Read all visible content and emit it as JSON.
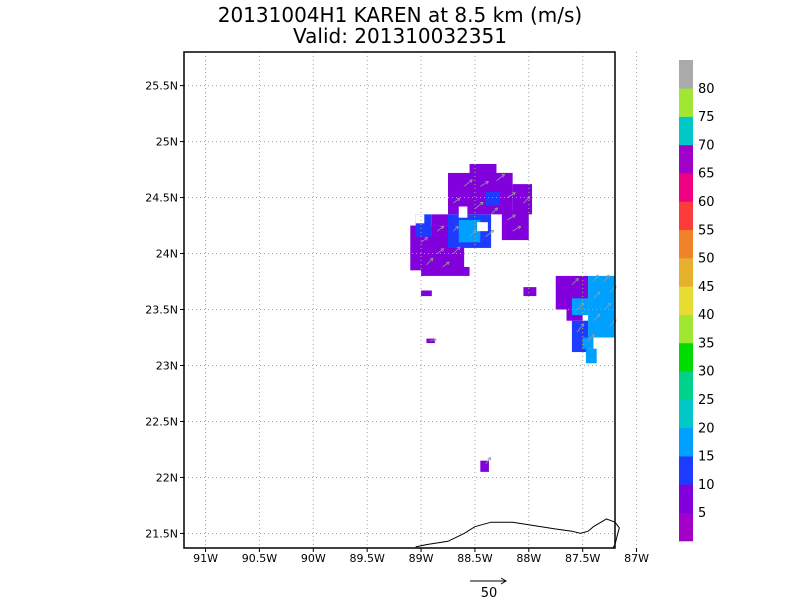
{
  "chart_data": {
    "type": "heatmap",
    "title": "20131004H1 KAREN at 8.5 km (m/s)",
    "subtitle": "Valid: 201310032351",
    "xlim": [
      -91.2,
      -87.2
    ],
    "ylim": [
      21.37,
      25.8
    ],
    "x_ticks": [
      -91,
      -90.5,
      -90,
      -89.5,
      -89,
      -88.5,
      -88,
      -87.5,
      -87
    ],
    "x_tick_labels": [
      "91W",
      "90.5W",
      "90W",
      "89.5W",
      "89W",
      "88.5W",
      "88W",
      "87.5W",
      "87W"
    ],
    "y_ticks": [
      21.5,
      22,
      22.5,
      23,
      23.5,
      24,
      24.5,
      25,
      25.5
    ],
    "y_tick_labels": [
      "21.5N",
      "22N",
      "22.5N",
      "23N",
      "23.5N",
      "24N",
      "24.5N",
      "25N",
      "25.5N"
    ],
    "grid": true,
    "colorbar": {
      "levels": [
        5,
        10,
        15,
        20,
        25,
        30,
        35,
        40,
        45,
        50,
        55,
        60,
        65,
        70,
        75,
        80
      ],
      "labels": [
        "5",
        "10",
        "15",
        "20",
        "25",
        "30",
        "35",
        "40",
        "45",
        "50",
        "55",
        "60",
        "65",
        "70",
        "75",
        "80"
      ],
      "colors": [
        "#a000c8",
        "#8200dc",
        "#1e3cff",
        "#00a0ff",
        "#00c8c8",
        "#00d28c",
        "#00dc00",
        "#a0e632",
        "#e6dc32",
        "#e6af2d",
        "#f08228",
        "#fa3c3c",
        "#f00082",
        "#a000c8",
        "#00c8c8",
        "#a0e632",
        "#aaaaaa"
      ]
    },
    "reference_vector": {
      "label": "50",
      "value_ms": 50
    },
    "colors": {
      "c_purple": "#8200dc",
      "c_blue": "#1e3cff",
      "c_lightblue": "#00a0ff",
      "vector": "#999999",
      "grid": "#a0a0a0",
      "coast": "#000000"
    },
    "regions": [
      {
        "bin": "c_purple",
        "lon": [
          -88.75,
          -88.15
        ],
        "lat": [
          24.35,
          24.72
        ]
      },
      {
        "bin": "c_purple",
        "lon": [
          -88.55,
          -88.3
        ],
        "lat": [
          24.7,
          24.8
        ]
      },
      {
        "bin": "c_purple",
        "lon": [
          -88.15,
          -87.97
        ],
        "lat": [
          24.35,
          24.62
        ]
      },
      {
        "bin": "c_purple",
        "lon": [
          -88.25,
          -88.0
        ],
        "lat": [
          24.12,
          24.38
        ]
      },
      {
        "bin": "c_purple",
        "lon": [
          -89.1,
          -88.6
        ],
        "lat": [
          23.85,
          24.25
        ]
      },
      {
        "bin": "c_purple",
        "lon": [
          -89.0,
          -88.55
        ],
        "lat": [
          23.8,
          23.88
        ]
      },
      {
        "bin": "c_purple",
        "lon": [
          -88.9,
          -88.75
        ],
        "lat": [
          24.25,
          24.35
        ]
      },
      {
        "bin": "c_purple",
        "lon": [
          -89.0,
          -88.9
        ],
        "lat": [
          23.62,
          23.67
        ]
      },
      {
        "bin": "c_purple",
        "lon": [
          -88.95,
          -88.87
        ],
        "lat": [
          23.2,
          23.24
        ]
      },
      {
        "bin": "c_purple",
        "lon": [
          -88.05,
          -87.93
        ],
        "lat": [
          23.62,
          23.7
        ]
      },
      {
        "bin": "c_purple",
        "lon": [
          -87.75,
          -87.45
        ],
        "lat": [
          23.5,
          23.8
        ]
      },
      {
        "bin": "c_purple",
        "lon": [
          -87.65,
          -87.5
        ],
        "lat": [
          23.4,
          23.5
        ]
      },
      {
        "bin": "c_purple",
        "lon": [
          -88.45,
          -88.37
        ],
        "lat": [
          22.05,
          22.15
        ]
      },
      {
        "bin": "c_blue",
        "lon": [
          -88.75,
          -88.35
        ],
        "lat": [
          24.05,
          24.35
        ]
      },
      {
        "bin": "c_blue",
        "lon": [
          -88.4,
          -88.27
        ],
        "lat": [
          24.43,
          24.55
        ]
      },
      {
        "bin": "c_blue",
        "lon": [
          -89.05,
          -88.9
        ],
        "lat": [
          24.15,
          24.35
        ]
      },
      {
        "bin": "c_blue",
        "lon": [
          -87.6,
          -87.45
        ],
        "lat": [
          23.12,
          23.4
        ]
      },
      {
        "bin": "c_lightblue",
        "lon": [
          -88.65,
          -88.45
        ],
        "lat": [
          24.1,
          24.3
        ]
      },
      {
        "bin": "c_lightblue",
        "lon": [
          -87.45,
          -87.2
        ],
        "lat": [
          23.25,
          23.8
        ]
      },
      {
        "bin": "c_lightblue",
        "lon": [
          -87.6,
          -87.45
        ],
        "lat": [
          23.45,
          23.6
        ]
      },
      {
        "bin": "c_lightblue",
        "lon": [
          -87.47,
          -87.37
        ],
        "lat": [
          23.02,
          23.15
        ]
      },
      {
        "bin": "c_lightblue",
        "lon": [
          -87.5,
          -87.4
        ],
        "lat": [
          23.15,
          23.25
        ]
      }
    ],
    "gaps": [
      {
        "lon": [
          -88.65,
          -88.57
        ],
        "lat": [
          24.32,
          24.42
        ]
      },
      {
        "lon": [
          -88.48,
          -88.38
        ],
        "lat": [
          24.2,
          24.28
        ]
      },
      {
        "lon": [
          -89.05,
          -88.97
        ],
        "lat": [
          24.27,
          24.35
        ]
      }
    ],
    "vectors": [
      {
        "lon": -88.6,
        "lat": 24.6,
        "u": 5,
        "v": 4
      },
      {
        "lon": -88.45,
        "lat": 24.6,
        "u": 5,
        "v": 3
      },
      {
        "lon": -88.3,
        "lat": 24.65,
        "u": 5,
        "v": 4
      },
      {
        "lon": -88.2,
        "lat": 24.5,
        "u": 5,
        "v": 3
      },
      {
        "lon": -88.05,
        "lat": 24.45,
        "u": 4,
        "v": 4
      },
      {
        "lon": -88.7,
        "lat": 24.45,
        "u": 4,
        "v": 3
      },
      {
        "lon": -88.5,
        "lat": 24.4,
        "u": 5,
        "v": 4
      },
      {
        "lon": -88.35,
        "lat": 24.35,
        "u": 4,
        "v": 4
      },
      {
        "lon": -88.2,
        "lat": 24.3,
        "u": 5,
        "v": 3
      },
      {
        "lon": -88.85,
        "lat": 24.2,
        "u": 4,
        "v": 3
      },
      {
        "lon": -88.7,
        "lat": 24.2,
        "u": 3,
        "v": 3
      },
      {
        "lon": -88.55,
        "lat": 24.15,
        "u": 4,
        "v": 4
      },
      {
        "lon": -88.4,
        "lat": 24.15,
        "u": 5,
        "v": 4
      },
      {
        "lon": -88.15,
        "lat": 24.2,
        "u": 5,
        "v": 3
      },
      {
        "lon": -89.0,
        "lat": 24.1,
        "u": 4,
        "v": 3
      },
      {
        "lon": -88.85,
        "lat": 24.0,
        "u": 4,
        "v": 3
      },
      {
        "lon": -88.7,
        "lat": 24.0,
        "u": 4,
        "v": 4
      },
      {
        "lon": -88.95,
        "lat": 23.9,
        "u": 4,
        "v": 4
      },
      {
        "lon": -88.8,
        "lat": 23.88,
        "u": 4,
        "v": 3
      },
      {
        "lon": -87.6,
        "lat": 23.72,
        "u": 4,
        "v": 4
      },
      {
        "lon": -87.4,
        "lat": 23.75,
        "u": 3,
        "v": 4
      },
      {
        "lon": -87.3,
        "lat": 23.75,
        "u": 3,
        "v": 4
      },
      {
        "lon": -87.25,
        "lat": 23.65,
        "u": 4,
        "v": 4
      },
      {
        "lon": -87.4,
        "lat": 23.6,
        "u": 4,
        "v": 4
      },
      {
        "lon": -87.55,
        "lat": 23.5,
        "u": 4,
        "v": 4
      },
      {
        "lon": -87.3,
        "lat": 23.5,
        "u": 4,
        "v": 4
      },
      {
        "lon": -87.4,
        "lat": 23.4,
        "u": 4,
        "v": 4
      },
      {
        "lon": -87.25,
        "lat": 23.35,
        "u": 4,
        "v": 4
      },
      {
        "lon": -87.55,
        "lat": 23.3,
        "u": 4,
        "v": 5
      },
      {
        "lon": -87.45,
        "lat": 23.22,
        "u": 4,
        "v": 4
      },
      {
        "lon": -88.92,
        "lat": 23.22,
        "u": 4,
        "v": 1
      },
      {
        "lon": -88.4,
        "lat": 22.12,
        "u": 3,
        "v": 4
      }
    ],
    "coastline": [
      [
        -89.05,
        21.38
      ],
      [
        -88.95,
        21.4
      ],
      [
        -88.75,
        21.43
      ],
      [
        -88.6,
        21.5
      ],
      [
        -88.5,
        21.56
      ],
      [
        -88.35,
        21.6
      ],
      [
        -88.15,
        21.6
      ],
      [
        -87.95,
        21.57
      ],
      [
        -87.75,
        21.54
      ],
      [
        -87.6,
        21.52
      ],
      [
        -87.52,
        21.5
      ],
      [
        -87.45,
        21.52
      ],
      [
        -87.4,
        21.56
      ],
      [
        -87.33,
        21.6
      ],
      [
        -87.28,
        21.63
      ],
      [
        -87.2,
        21.6
      ],
      [
        -87.16,
        21.55
      ],
      [
        -87.18,
        21.48
      ],
      [
        -87.2,
        21.4
      ],
      [
        -87.22,
        21.37
      ]
    ]
  }
}
